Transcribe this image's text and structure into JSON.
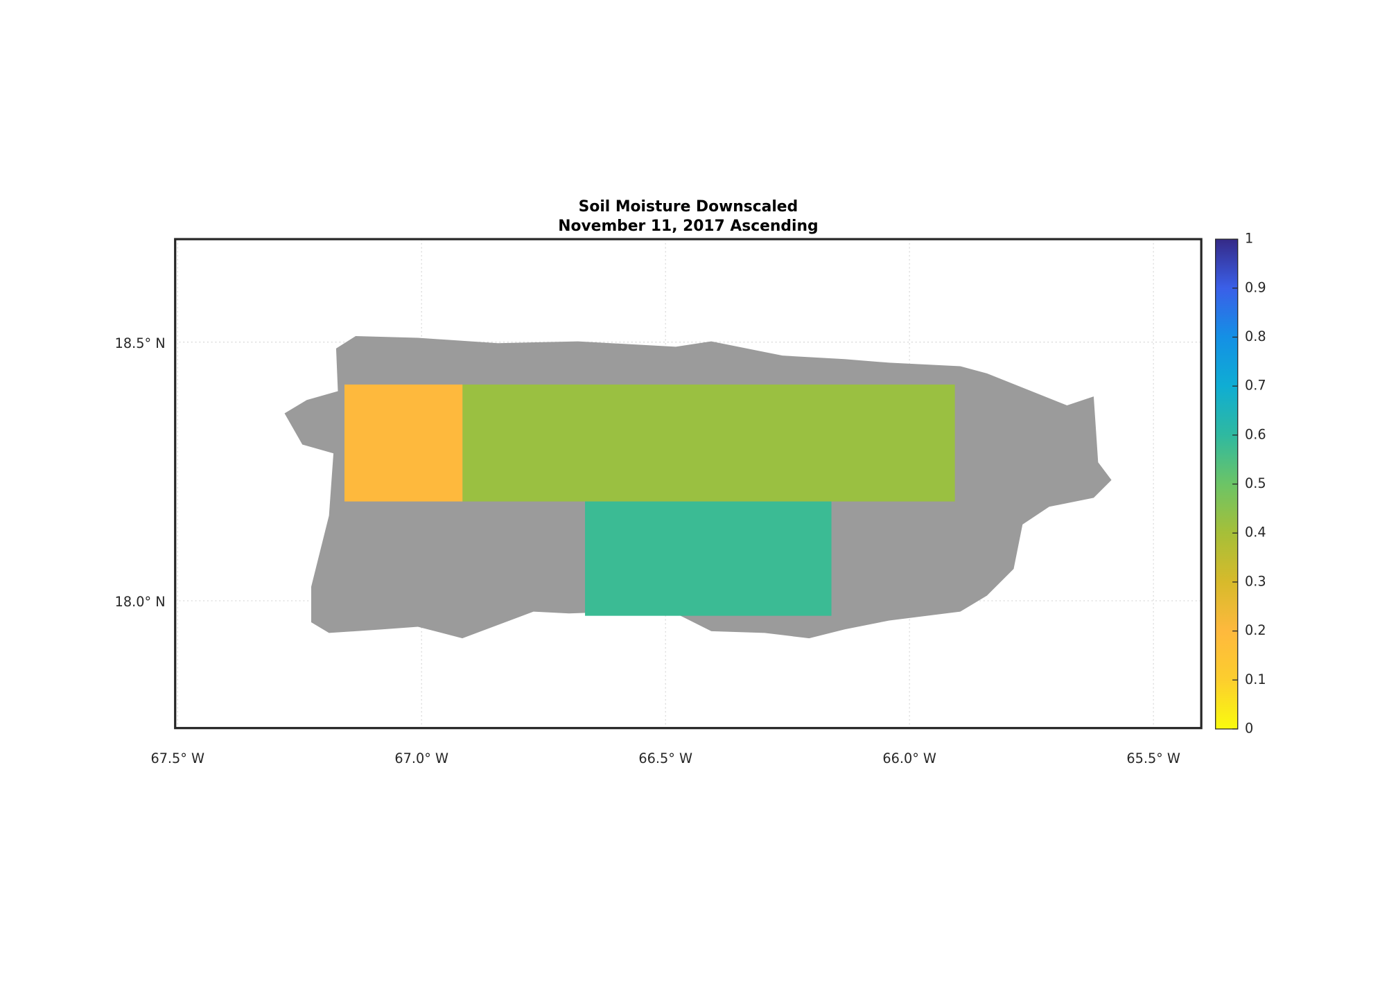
{
  "chart_data": {
    "type": "map",
    "title": "Soil Moisture Downscaled",
    "subtitle": "November 11, 2017 Ascending",
    "xlim": [
      -67.505,
      -65.402
    ],
    "ylim": [
      17.754,
      18.699
    ],
    "xticks": [
      {
        "value": -67.5,
        "label": "67.5° W"
      },
      {
        "value": -67.0,
        "label": "67.0° W"
      },
      {
        "value": -66.5,
        "label": "66.5° W"
      },
      {
        "value": -66.0,
        "label": "66.0° W"
      },
      {
        "value": -65.5,
        "label": "65.5° W"
      }
    ],
    "yticks": [
      {
        "value": 18.0,
        "label": "18.0° N"
      },
      {
        "value": 18.5,
        "label": "18.5° N"
      }
    ],
    "grid": true,
    "land_color": "#9b9b9b",
    "regions": [
      {
        "lon": [
          -67.158,
          -66.916
        ],
        "lat": [
          18.192,
          18.418
        ],
        "value": 0.2
      },
      {
        "lon": [
          -66.916,
          -65.907
        ],
        "lat": [
          18.192,
          18.418
        ],
        "value": 0.42
      },
      {
        "lon": [
          -66.665,
          -66.16
        ],
        "lat": [
          17.971,
          18.192
        ],
        "value": 0.58
      }
    ],
    "clim": [
      0,
      1
    ],
    "cticks": [
      0,
      0.1,
      0.2,
      0.3,
      0.4,
      0.5,
      0.6,
      0.7,
      0.8,
      0.9,
      1
    ],
    "colormap": [
      "#f9fb0e",
      "#fcce2e",
      "#feb93d",
      "#d7ba2b",
      "#a6bf38",
      "#6cc466",
      "#2fb9a0",
      "#0fadd3",
      "#1490e5",
      "#3a5fe8",
      "#352a87"
    ]
  }
}
